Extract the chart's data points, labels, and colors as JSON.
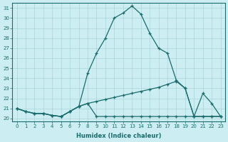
{
  "xlabel": "Humidex (Indice chaleur)",
  "bg_color": "#cceef2",
  "grid_color": "#aad4d8",
  "line_color": "#1a6b6b",
  "xlim": [
    -0.5,
    23.5
  ],
  "ylim": [
    19.7,
    31.5
  ],
  "yticks": [
    20,
    21,
    22,
    23,
    24,
    25,
    26,
    27,
    28,
    29,
    30,
    31
  ],
  "xticks": [
    0,
    1,
    2,
    3,
    4,
    5,
    6,
    7,
    8,
    9,
    10,
    11,
    12,
    13,
    14,
    15,
    16,
    17,
    18,
    19,
    20,
    21,
    22,
    23
  ],
  "curve1_x": [
    0,
    1,
    2,
    3,
    4,
    5,
    6,
    7,
    8,
    9,
    10,
    11,
    12,
    13,
    14,
    15,
    16,
    17,
    18,
    19,
    20,
    21,
    22,
    23
  ],
  "curve1_y": [
    21.0,
    20.7,
    20.5,
    20.5,
    20.3,
    20.2,
    20.7,
    21.2,
    24.5,
    26.5,
    28.0,
    30.0,
    30.5,
    31.2,
    30.4,
    28.5,
    27.0,
    26.5,
    23.8,
    23.0,
    20.2,
    22.5,
    21.5,
    20.2
  ],
  "curve2_x": [
    0,
    1,
    2,
    3,
    4,
    5,
    6,
    7,
    8,
    9,
    10,
    11,
    12,
    13,
    14,
    15,
    16,
    17,
    18,
    19,
    20,
    21,
    22,
    23
  ],
  "curve2_y": [
    21.0,
    20.7,
    20.5,
    20.5,
    20.3,
    20.2,
    20.7,
    21.2,
    21.5,
    21.7,
    21.9,
    22.1,
    22.3,
    22.5,
    22.7,
    22.9,
    23.1,
    23.4,
    23.7,
    23.0,
    20.2,
    20.2,
    20.2,
    20.2
  ],
  "curve3_x": [
    0,
    1,
    2,
    3,
    4,
    5,
    6,
    7,
    8,
    9,
    10,
    11,
    12,
    13,
    14,
    15,
    16,
    17,
    18,
    19,
    20,
    21,
    22,
    23
  ],
  "curve3_y": [
    21.0,
    20.7,
    20.5,
    20.5,
    20.3,
    20.2,
    20.7,
    21.2,
    21.5,
    20.2,
    20.2,
    20.2,
    20.2,
    20.2,
    20.2,
    20.2,
    20.2,
    20.2,
    20.2,
    20.2,
    20.2,
    20.2,
    20.2,
    20.2
  ],
  "xlabel_fontsize": 6,
  "tick_fontsize": 5
}
